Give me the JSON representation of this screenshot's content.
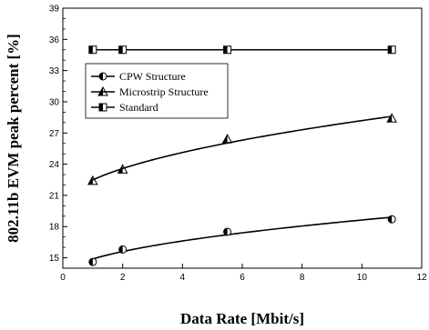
{
  "chart_data": {
    "type": "line",
    "title": "",
    "xlabel": "Data Rate [Mbit/s]",
    "ylabel": "802.11b EVM peak percent [%]",
    "xlim": [
      0,
      12
    ],
    "ylim": [
      14,
      39
    ],
    "x_ticks": [
      "0",
      "2",
      "4",
      "6",
      "8",
      "10",
      "12"
    ],
    "y_ticks": [
      "15",
      "18",
      "21",
      "24",
      "27",
      "30",
      "33",
      "36",
      "39"
    ],
    "grid": false,
    "legend_position": "upper-left",
    "series": [
      {
        "name": "CPW Structure",
        "marker": "half-filled-circle",
        "smooth": true,
        "x": [
          1,
          2,
          5.5,
          11
        ],
        "values": [
          14.6,
          15.8,
          17.5,
          18.7
        ]
      },
      {
        "name": "Microstrip Structure",
        "marker": "half-filled-triangle",
        "smooth": true,
        "x": [
          1,
          2,
          5.5,
          11
        ],
        "values": [
          22.4,
          23.5,
          26.4,
          28.4
        ]
      },
      {
        "name": "Standard",
        "marker": "half-filled-square",
        "smooth": false,
        "x": [
          1,
          2,
          5.5,
          11
        ],
        "values": [
          35,
          35,
          35,
          35
        ]
      }
    ]
  }
}
